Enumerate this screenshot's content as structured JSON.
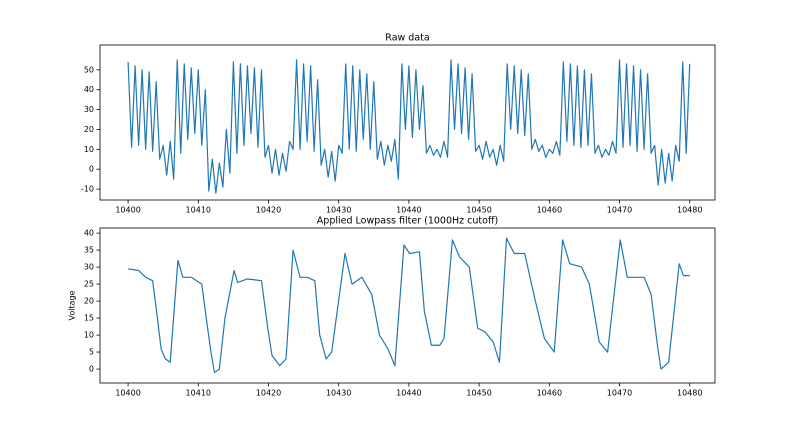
{
  "chart_data": [
    {
      "type": "line",
      "title": "Raw data",
      "color": "#1f77b4",
      "x": [
        10400,
        10400.5,
        10401,
        10401.5,
        10402,
        10402.5,
        10403,
        10403.5,
        10404,
        10404.5,
        10405,
        10405.5,
        10406,
        10406.5,
        10407,
        10407.5,
        10408,
        10408.5,
        10409,
        10409.5,
        10410,
        10410.5,
        10411,
        10411.5,
        10412,
        10412.5,
        10413,
        10413.5,
        10414,
        10414.5,
        10415,
        10415.5,
        10416,
        10416.5,
        10417,
        10417.5,
        10418,
        10418.5,
        10419,
        10419.5,
        10420,
        10420.5,
        10421,
        10421.5,
        10422,
        10422.5,
        10423,
        10423.5,
        10424,
        10424.5,
        10425,
        10425.5,
        10426,
        10426.5,
        10427,
        10427.5,
        10428,
        10428.5,
        10429,
        10429.5,
        10430,
        10430.5,
        10431,
        10431.5,
        10432,
        10432.5,
        10433,
        10433.5,
        10434,
        10434.5,
        10435,
        10435.5,
        10436,
        10436.5,
        10437,
        10437.5,
        10438,
        10438.5,
        10439,
        10439.5,
        10440,
        10440.5,
        10441,
        10441.5,
        10442,
        10442.5,
        10443,
        10443.5,
        10444,
        10444.5,
        10445,
        10445.5,
        10446,
        10446.5,
        10447,
        10447.5,
        10448,
        10448.5,
        10449,
        10449.5,
        10450,
        10450.5,
        10451,
        10451.5,
        10452,
        10452.5,
        10453,
        10453.5,
        10454,
        10454.5,
        10455,
        10455.5,
        10456,
        10456.5,
        10457,
        10457.5,
        10458,
        10458.5,
        10459,
        10459.5,
        10460,
        10460.5,
        10461,
        10461.5,
        10462,
        10462.5,
        10463,
        10463.5,
        10464,
        10464.5,
        10465,
        10465.5,
        10466,
        10466.5,
        10467,
        10467.5,
        10468,
        10468.5,
        10469,
        10469.5,
        10470,
        10470.5,
        10471,
        10471.5,
        10472,
        10472.5,
        10473,
        10473.5,
        10474,
        10474.5,
        10475,
        10475.5,
        10476,
        10476.5,
        10477,
        10477.5,
        10478,
        10478.5,
        10479,
        10479.5,
        10480
      ],
      "values": [
        54,
        11,
        52,
        12,
        50,
        10,
        49,
        9,
        44,
        5,
        12,
        -3,
        14,
        -5,
        55,
        8,
        53,
        15,
        51,
        18,
        50,
        12,
        40,
        -11,
        5,
        -12,
        3,
        -9,
        20,
        -2,
        54,
        8,
        53,
        12,
        52,
        18,
        51,
        11,
        50,
        6,
        12,
        -2,
        10,
        -3,
        8,
        -1,
        14,
        10,
        55,
        10,
        53,
        14,
        52,
        9,
        45,
        2,
        10,
        -4,
        9,
        -6,
        12,
        8,
        53,
        10,
        52,
        9,
        50,
        15,
        48,
        10,
        44,
        5,
        14,
        2,
        12,
        4,
        15,
        -5,
        53,
        20,
        52,
        16,
        50,
        20,
        42,
        8,
        12,
        7,
        10,
        6,
        14,
        6,
        55,
        20,
        53,
        18,
        51,
        15,
        48,
        9,
        12,
        5,
        14,
        6,
        10,
        2,
        12,
        4,
        53,
        20,
        52,
        18,
        50,
        17,
        48,
        10,
        15,
        9,
        12,
        6,
        10,
        8,
        14,
        7,
        54,
        14,
        53,
        12,
        52,
        11,
        50,
        12,
        48,
        8,
        12,
        6,
        10,
        7,
        14,
        8,
        55,
        11,
        53,
        12,
        52,
        9,
        50,
        10,
        48,
        8,
        12,
        -8,
        10,
        -7,
        8,
        -6,
        12,
        4,
        54,
        8,
        53
      ],
      "xlim": [
        10396,
        10483.6
      ],
      "ylim": [
        -15.5,
        62.5
      ],
      "xticks": [
        10400,
        10410,
        10420,
        10430,
        10440,
        10450,
        10460,
        10470,
        10480
      ],
      "yticks": [
        -10,
        0,
        10,
        20,
        30,
        40,
        50
      ]
    },
    {
      "type": "line",
      "title": "Applied Lowpass filter (1000Hz cutoff)",
      "ylabel": "Voltage",
      "color": "#1f77b4",
      "x": [
        10400,
        10401.5,
        10402.5,
        10403.5,
        10404,
        10404.7,
        10405.3,
        10406,
        10407.1,
        10407.8,
        10409,
        10410.5,
        10411.2,
        10411.8,
        10412.3,
        10413,
        10413.8,
        10415.1,
        10415.6,
        10417,
        10419,
        10419.9,
        10420.5,
        10421.6,
        10422.5,
        10423.5,
        10424.5,
        10425.5,
        10426.6,
        10427.3,
        10428.2,
        10429,
        10430.9,
        10431.9,
        10433.3,
        10434.7,
        10435.8,
        10437,
        10438,
        10439.3,
        10440.1,
        10441.5,
        10442.2,
        10443.2,
        10444.4,
        10445,
        10446.2,
        10447.2,
        10448.6,
        10449.8,
        10450.8,
        10452,
        10452.9,
        10453.9,
        10455,
        10456.5,
        10457.9,
        10459.3,
        10460.7,
        10461.9,
        10462.9,
        10464.6,
        10465.7,
        10467.1,
        10468.3,
        10470.1,
        10471.1,
        10473.5,
        10474.5,
        10475.4,
        10475.9,
        10477,
        10478.5,
        10479.1,
        10480
      ],
      "values": [
        29.5,
        29,
        27,
        26,
        18,
        6,
        3,
        2,
        32,
        27,
        27,
        25,
        14,
        5,
        -1,
        0,
        15,
        29,
        25.5,
        26.5,
        26,
        12,
        4,
        1,
        3,
        35,
        27,
        27,
        26,
        10,
        3,
        5,
        34,
        25,
        27,
        22,
        10,
        6,
        1,
        36.5,
        34,
        34.5,
        17,
        7,
        7,
        9,
        38,
        33,
        30,
        12,
        11,
        8,
        2,
        38.5,
        34,
        34,
        21,
        9,
        5,
        38,
        31,
        30,
        25,
        8,
        5,
        38,
        27,
        27,
        22,
        7,
        0,
        2,
        31,
        27.5,
        27.5
      ],
      "xlim": [
        10396,
        10483.6
      ],
      "ylim": [
        -4.1,
        41.5
      ],
      "xticks": [
        10400,
        10410,
        10420,
        10430,
        10440,
        10450,
        10460,
        10470,
        10480
      ],
      "yticks": [
        0,
        5,
        10,
        15,
        20,
        25,
        30,
        35,
        40
      ]
    }
  ]
}
